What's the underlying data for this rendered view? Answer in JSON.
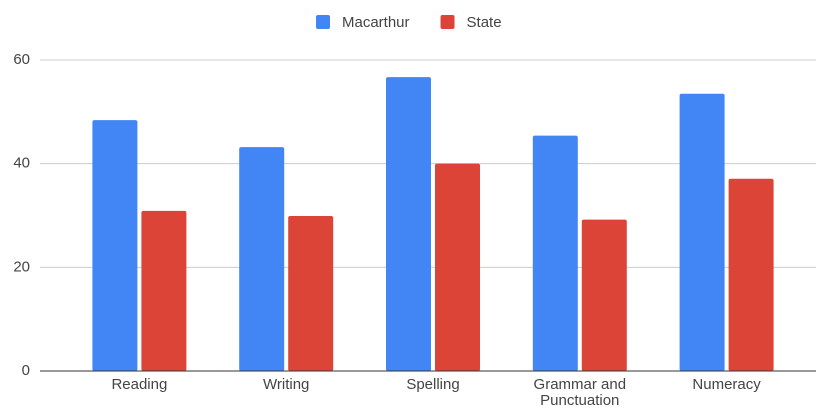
{
  "chart_data": {
    "type": "bar",
    "categories": [
      "Reading",
      "Writing",
      "Spelling",
      "Grammar and Punctuation",
      "Numeracy"
    ],
    "series": [
      {
        "name": "Macarthur",
        "color": "#4285f4",
        "values": [
          48.4,
          43.2,
          56.7,
          45.4,
          53.5
        ]
      },
      {
        "name": "State",
        "color": "#db4437",
        "values": [
          30.9,
          29.9,
          40.0,
          29.2,
          37.1
        ]
      }
    ],
    "ylim": [
      0,
      60
    ],
    "yticks": [
      0,
      20,
      40,
      60
    ],
    "grid": true,
    "legend": "top"
  }
}
